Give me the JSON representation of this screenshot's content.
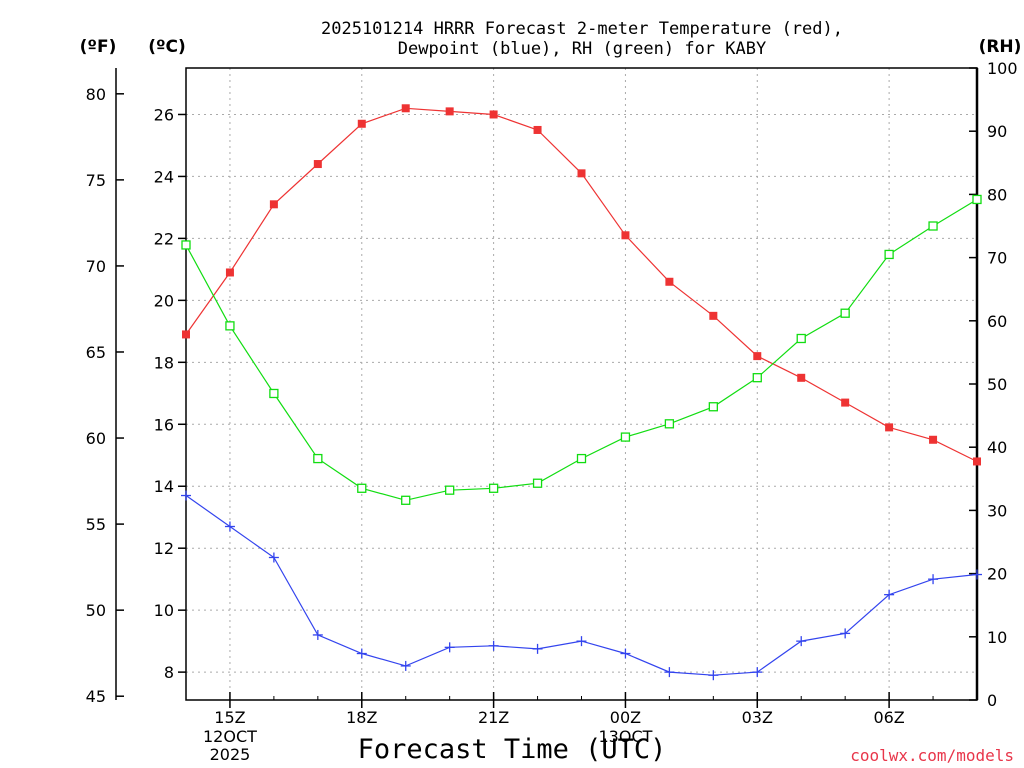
{
  "chart_data": {
    "type": "line",
    "title_line1": "2025101214 HRRR Forecast 2-meter Temperature (red),",
    "title_line2": "Dewpoint (blue), RH (green) for KABY",
    "xlabel": "Forecast Time (UTC)",
    "credit": "coolwx.com/models",
    "units": {
      "fahrenheit": "(ºF)",
      "celsius": "(ºC)",
      "rh": "(RH)"
    },
    "x_hours": [
      14,
      15,
      16,
      17,
      18,
      19,
      20,
      21,
      22,
      23,
      24,
      25,
      26,
      27,
      28,
      29,
      30,
      31,
      32
    ],
    "xlim": [
      14,
      32
    ],
    "x_ticks": [
      {
        "hour": 15,
        "label": "15Z",
        "date1": "12OCT",
        "date2": "2025"
      },
      {
        "hour": 18,
        "label": "18Z"
      },
      {
        "hour": 21,
        "label": "21Z"
      },
      {
        "hour": 24,
        "label": "00Z",
        "date1": "13OCT"
      },
      {
        "hour": 27,
        "label": "03Z"
      },
      {
        "hour": 30,
        "label": "06Z"
      }
    ],
    "celsius_axis": {
      "range": [
        7.1,
        27.5
      ],
      "ticks": [
        "8",
        "10",
        "12",
        "14",
        "16",
        "18",
        "20",
        "22",
        "24",
        "26"
      ]
    },
    "fahrenheit_axis": {
      "range": [
        44.78,
        81.5
      ],
      "ticks": [
        "45",
        "50",
        "55",
        "60",
        "65",
        "70",
        "75",
        "80"
      ]
    },
    "rh_axis": {
      "range": [
        0,
        100
      ],
      "ticks": [
        "0",
        "10",
        "20",
        "30",
        "40",
        "50",
        "60",
        "70",
        "80",
        "90",
        "100"
      ]
    },
    "series": [
      {
        "name": "Temperature",
        "axis": "celsius",
        "color": "#ee3333",
        "marker": "filled-square",
        "values": [
          18.9,
          20.9,
          23.1,
          24.4,
          25.7,
          26.2,
          26.1,
          26.0,
          25.5,
          24.1,
          22.1,
          20.6,
          19.5,
          18.2,
          17.5,
          16.7,
          15.9,
          15.5,
          14.8
        ]
      },
      {
        "name": "Dewpoint",
        "axis": "celsius",
        "color": "#3344ee",
        "marker": "plus",
        "values": [
          13.7,
          12.7,
          11.7,
          9.2,
          8.6,
          8.2,
          8.8,
          8.85,
          8.75,
          9.0,
          8.6,
          8.0,
          7.9,
          8.0,
          9.0,
          9.25,
          10.5,
          11.0,
          11.15
        ]
      },
      {
        "name": "RH",
        "axis": "rh",
        "color": "#11dd11",
        "marker": "open-square",
        "values": [
          72,
          59.2,
          48.5,
          38.2,
          33.5,
          31.6,
          33.2,
          33.5,
          34.3,
          38.2,
          41.6,
          43.7,
          46.4,
          51,
          57.2,
          61.2,
          70.5,
          75,
          79.2
        ]
      }
    ],
    "grid": true
  }
}
